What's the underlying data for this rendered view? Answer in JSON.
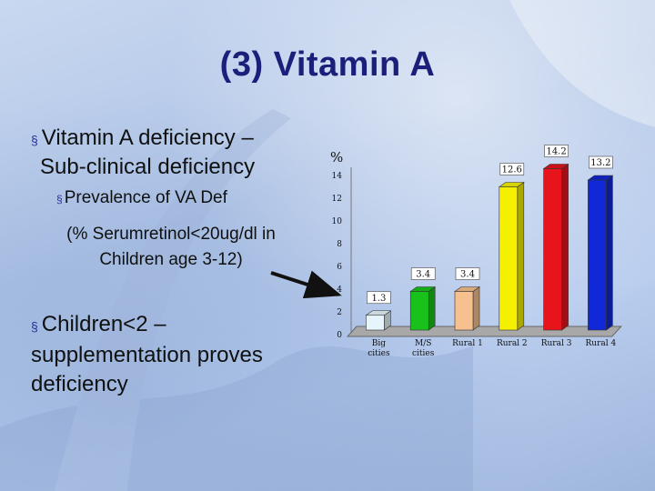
{
  "slide": {
    "title": "(3) Vitamin A",
    "bullet1_line1": "Vitamin A deficiency –",
    "bullet1_line2": "Sub-clinical deficiency",
    "sub_bullet": "Prevalence of  VA Def",
    "note_line1": "(% Serumretinol<20ug/dl in",
    "note_line2": "Children age 3-12)",
    "bullet2_line1": "Children<2 –",
    "bullet2_line2": "supplementation proves",
    "bullet2_line3": "deficiency",
    "bullet_marker": "§"
  },
  "chart_data": {
    "type": "bar",
    "ylabel": "%",
    "ylim": [
      0,
      14
    ],
    "yticks": [
      0,
      2,
      4,
      6,
      8,
      10,
      12,
      14
    ],
    "categories": [
      [
        "Big",
        "cities"
      ],
      [
        "M/S",
        "cities"
      ],
      [
        "Rural 1"
      ],
      [
        "Rural 2"
      ],
      [
        "Rural 3"
      ],
      [
        "Rural 4"
      ]
    ],
    "values": [
      1.3,
      3.4,
      3.4,
      12.6,
      14.2,
      13.2
    ],
    "value_labels": [
      "1.3",
      "3.4",
      "3.4",
      "12.6",
      "14.2",
      "13.2"
    ],
    "colors": [
      "#e6f5fb",
      "#19c21b",
      "#f7c08f",
      "#f4f000",
      "#e8141c",
      "#1028d8"
    ],
    "grid": false,
    "legend": "none"
  }
}
